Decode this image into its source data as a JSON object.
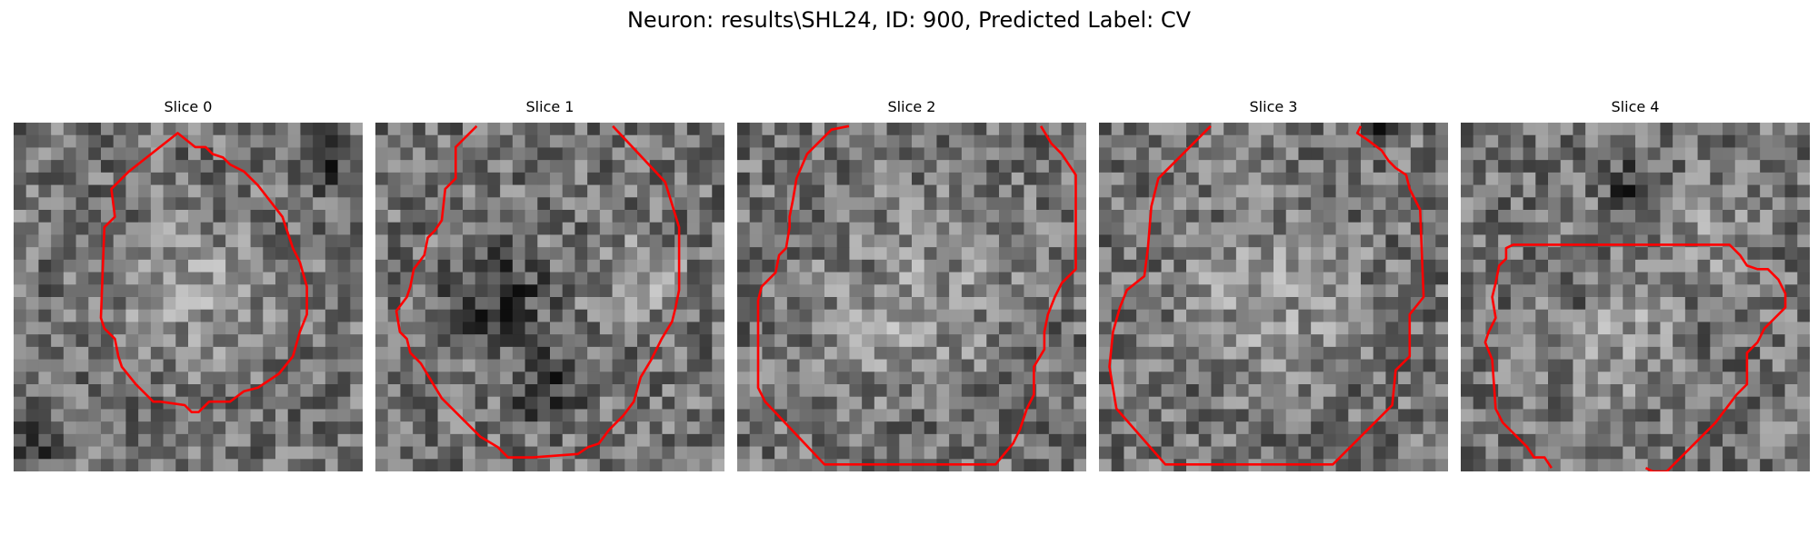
{
  "figure": {
    "title": "Neuron: results\\SHL24, ID: 900, Predicted Label: CV"
  },
  "panels": [
    {
      "title": "Slice 0",
      "contour_color": "#ff0000",
      "contour": [
        [
          0.47,
          0.03
        ],
        [
          0.52,
          0.07
        ],
        [
          0.55,
          0.07
        ],
        [
          0.57,
          0.09
        ],
        [
          0.6,
          0.1
        ],
        [
          0.62,
          0.12
        ],
        [
          0.66,
          0.14
        ],
        [
          0.7,
          0.18
        ],
        [
          0.77,
          0.27
        ],
        [
          0.8,
          0.36
        ],
        [
          0.82,
          0.4
        ],
        [
          0.84,
          0.47
        ],
        [
          0.84,
          0.55
        ],
        [
          0.82,
          0.6
        ],
        [
          0.8,
          0.67
        ],
        [
          0.76,
          0.72
        ],
        [
          0.7,
          0.76
        ],
        [
          0.66,
          0.77
        ],
        [
          0.62,
          0.8
        ],
        [
          0.56,
          0.8
        ],
        [
          0.53,
          0.83
        ],
        [
          0.51,
          0.83
        ],
        [
          0.49,
          0.81
        ],
        [
          0.42,
          0.8
        ],
        [
          0.4,
          0.8
        ],
        [
          0.35,
          0.75
        ],
        [
          0.31,
          0.7
        ],
        [
          0.3,
          0.67
        ],
        [
          0.29,
          0.62
        ],
        [
          0.26,
          0.59
        ],
        [
          0.25,
          0.56
        ],
        [
          0.26,
          0.3
        ],
        [
          0.29,
          0.27
        ],
        [
          0.28,
          0.19
        ],
        [
          0.33,
          0.14
        ]
      ],
      "contour_closed": true
    },
    {
      "title": "Slice 1",
      "contour_color": "#ff0000",
      "contour": [
        [
          0.29,
          0.01
        ],
        [
          0.23,
          0.07
        ],
        [
          0.23,
          0.16
        ],
        [
          0.2,
          0.19
        ],
        [
          0.19,
          0.28
        ],
        [
          0.17,
          0.31
        ],
        [
          0.15,
          0.33
        ],
        [
          0.14,
          0.38
        ],
        [
          0.11,
          0.42
        ],
        [
          0.1,
          0.47
        ],
        [
          0.09,
          0.5
        ],
        [
          0.06,
          0.54
        ],
        [
          0.07,
          0.6
        ],
        [
          0.09,
          0.62
        ],
        [
          0.1,
          0.66
        ],
        [
          0.13,
          0.69
        ],
        [
          0.16,
          0.74
        ],
        [
          0.19,
          0.79
        ],
        [
          0.23,
          0.83
        ],
        [
          0.3,
          0.9
        ],
        [
          0.35,
          0.93
        ],
        [
          0.38,
          0.96
        ],
        [
          0.45,
          0.96
        ],
        [
          0.58,
          0.95
        ],
        [
          0.61,
          0.93
        ],
        [
          0.64,
          0.92
        ],
        [
          0.67,
          0.88
        ],
        [
          0.71,
          0.84
        ],
        [
          0.74,
          0.8
        ],
        [
          0.76,
          0.73
        ],
        [
          0.79,
          0.68
        ],
        [
          0.82,
          0.62
        ],
        [
          0.85,
          0.57
        ],
        [
          0.86,
          0.53
        ],
        [
          0.87,
          0.48
        ],
        [
          0.87,
          0.3
        ],
        [
          0.83,
          0.17
        ],
        [
          0.68,
          0.01
        ]
      ],
      "contour_closed": false
    },
    {
      "title": "Slice 2",
      "contour_color": "#ff0000",
      "contour": [
        [
          0.32,
          0.01
        ],
        [
          0.27,
          0.02
        ],
        [
          0.2,
          0.09
        ],
        [
          0.17,
          0.16
        ],
        [
          0.16,
          0.22
        ],
        [
          0.15,
          0.27
        ],
        [
          0.15,
          0.3
        ],
        [
          0.14,
          0.36
        ],
        [
          0.12,
          0.38
        ],
        [
          0.11,
          0.43
        ],
        [
          0.07,
          0.47
        ],
        [
          0.06,
          0.51
        ],
        [
          0.06,
          0.76
        ],
        [
          0.08,
          0.8
        ],
        [
          0.25,
          0.98
        ],
        [
          0.74,
          0.98
        ],
        [
          0.79,
          0.92
        ],
        [
          0.81,
          0.88
        ],
        [
          0.83,
          0.82
        ],
        [
          0.85,
          0.78
        ],
        [
          0.85,
          0.7
        ],
        [
          0.88,
          0.65
        ],
        [
          0.88,
          0.6
        ],
        [
          0.89,
          0.55
        ],
        [
          0.91,
          0.5
        ],
        [
          0.93,
          0.46
        ],
        [
          0.97,
          0.42
        ],
        [
          0.97,
          0.15
        ],
        [
          0.93,
          0.09
        ],
        [
          0.9,
          0.06
        ],
        [
          0.87,
          0.01
        ]
      ],
      "contour_closed": false
    },
    {
      "title": "Slice 3",
      "contour_color": "#ff0000",
      "contour": [
        [
          0.32,
          0.01
        ],
        [
          0.17,
          0.16
        ],
        [
          0.15,
          0.24
        ],
        [
          0.14,
          0.36
        ],
        [
          0.13,
          0.44
        ],
        [
          0.08,
          0.48
        ],
        [
          0.06,
          0.53
        ],
        [
          0.04,
          0.6
        ],
        [
          0.03,
          0.7
        ],
        [
          0.05,
          0.82
        ],
        [
          0.19,
          0.98
        ],
        [
          0.67,
          0.98
        ],
        [
          0.84,
          0.81
        ],
        [
          0.85,
          0.71
        ],
        [
          0.89,
          0.67
        ],
        [
          0.89,
          0.55
        ],
        [
          0.93,
          0.5
        ],
        [
          0.92,
          0.25
        ],
        [
          0.89,
          0.19
        ],
        [
          0.88,
          0.15
        ],
        [
          0.85,
          0.13
        ],
        [
          0.83,
          0.11
        ],
        [
          0.81,
          0.08
        ],
        [
          0.77,
          0.05
        ],
        [
          0.74,
          0.03
        ],
        [
          0.75,
          0.01
        ]
      ],
      "contour_closed": false
    },
    {
      "title": "Slice 4",
      "contour_color": "#ff0000",
      "contour": [
        [
          0.26,
          0.99
        ],
        [
          0.24,
          0.96
        ],
        [
          0.21,
          0.96
        ],
        [
          0.19,
          0.93
        ],
        [
          0.12,
          0.86
        ],
        [
          0.1,
          0.82
        ],
        [
          0.09,
          0.68
        ],
        [
          0.07,
          0.63
        ],
        [
          0.08,
          0.6
        ],
        [
          0.1,
          0.56
        ],
        [
          0.09,
          0.5
        ],
        [
          0.1,
          0.46
        ],
        [
          0.11,
          0.41
        ],
        [
          0.13,
          0.39
        ],
        [
          0.13,
          0.36
        ],
        [
          0.15,
          0.35
        ],
        [
          0.77,
          0.35
        ],
        [
          0.8,
          0.38
        ],
        [
          0.82,
          0.41
        ],
        [
          0.85,
          0.42
        ],
        [
          0.88,
          0.42
        ],
        [
          0.91,
          0.45
        ],
        [
          0.93,
          0.49
        ],
        [
          0.93,
          0.53
        ],
        [
          0.87,
          0.59
        ],
        [
          0.85,
          0.63
        ],
        [
          0.82,
          0.66
        ],
        [
          0.82,
          0.75
        ],
        [
          0.79,
          0.78
        ],
        [
          0.76,
          0.82
        ],
        [
          0.73,
          0.86
        ],
        [
          0.59,
          1.0
        ],
        [
          0.55,
          1.0
        ],
        [
          0.53,
          0.99
        ]
      ],
      "contour_closed": false
    }
  ]
}
